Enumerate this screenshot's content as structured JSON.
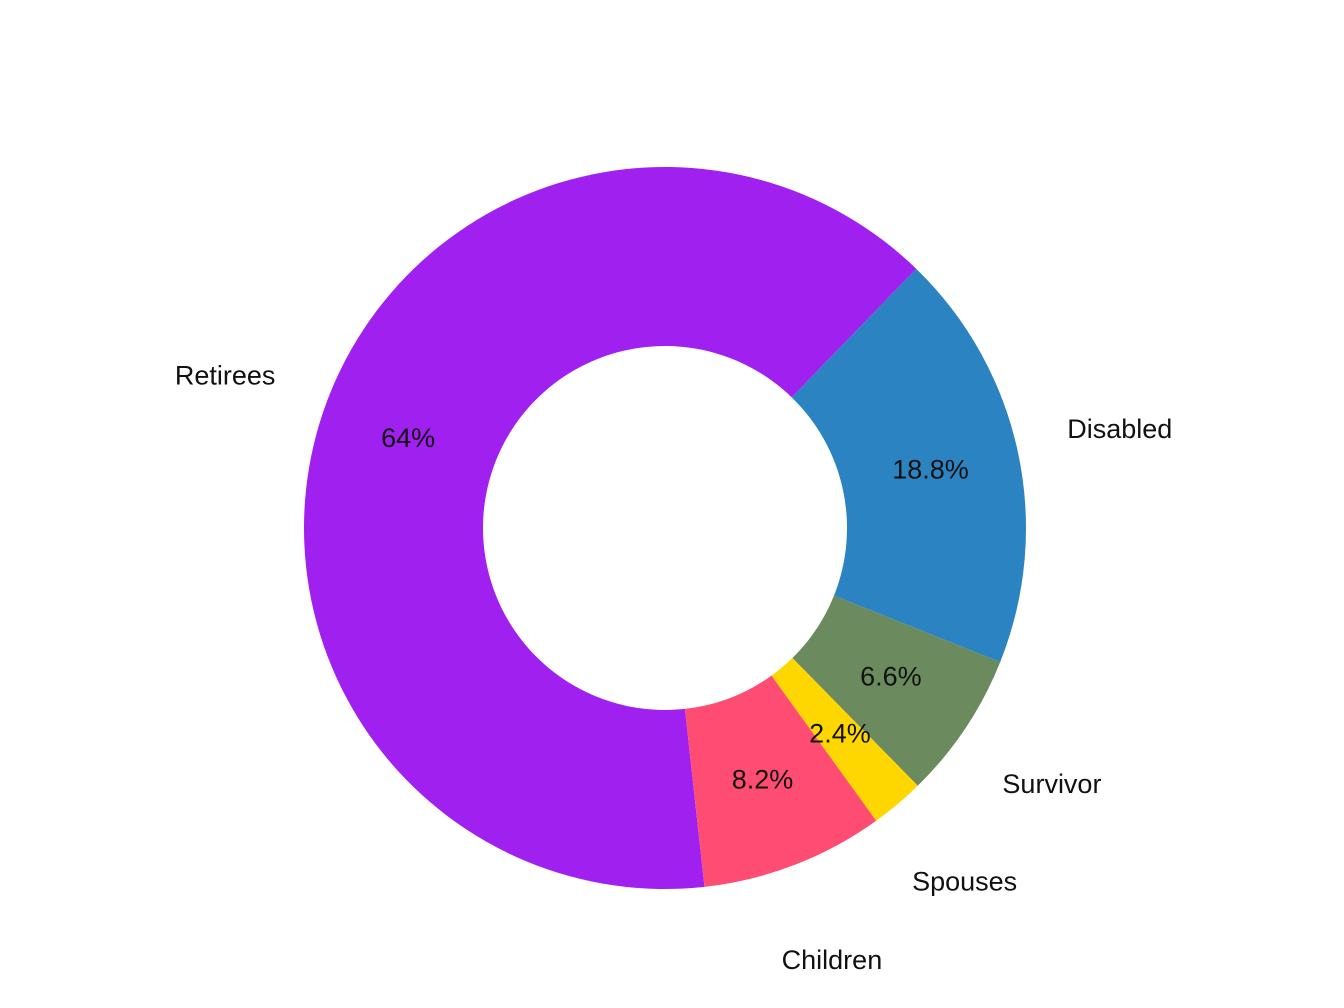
{
  "chart_data": {
    "type": "pie",
    "donut": true,
    "title": "",
    "legend": "none",
    "slices": [
      {
        "label": "Retirees",
        "value": 64.0,
        "value_label": "64%",
        "color": "#A020F0"
      },
      {
        "label": "Disabled",
        "value": 18.8,
        "value_label": "18.8%",
        "color": "#2C83C1"
      },
      {
        "label": "Survivor",
        "value": 6.6,
        "value_label": "6.6%",
        "color": "#6B8A5E"
      },
      {
        "label": "Spouses",
        "value": 2.4,
        "value_label": "2.4%",
        "color": "#FFD700"
      },
      {
        "label": "Children",
        "value": 8.2,
        "value_label": "8.2%",
        "color": "#FF4C73"
      }
    ]
  }
}
